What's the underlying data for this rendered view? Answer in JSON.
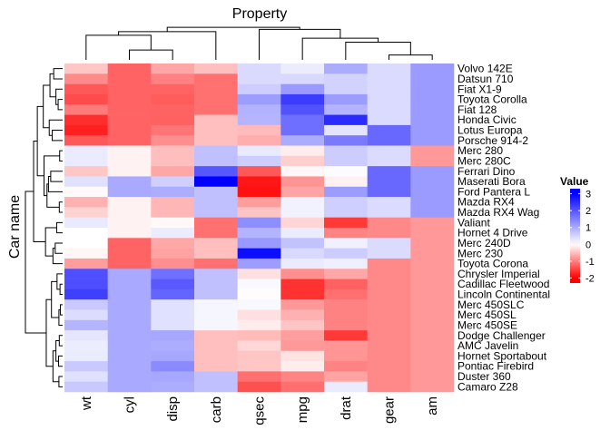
{
  "chart_data": {
    "type": "heatmap",
    "title": "Property",
    "ylabel": "Car name",
    "legend": {
      "title": "Value",
      "ticks": [
        3,
        2,
        1,
        0,
        -1,
        -2
      ],
      "range": [
        -2.3,
        3.3
      ],
      "low_color": "#ff0000",
      "mid_color": "#ffffff",
      "high_color": "#0000ff",
      "placement": "right"
    },
    "columns": [
      "wt",
      "cyl",
      "disp",
      "carb",
      "qsec",
      "mpg",
      "drat",
      "gear",
      "am"
    ],
    "rows": [
      "Volvo 142E",
      "Datsun 710",
      "Fiat X1-9",
      "Toyota Corolla",
      "Fiat 128",
      "Honda Civic",
      "Lotus Europa",
      "Porsche 914-2",
      "Merc 280",
      "Merc 280C",
      "Ferrari Dino",
      "Maserati Bora",
      "Ford Pantera L",
      "Mazda RX4",
      "Mazda RX4 Wag",
      "Valiant",
      "Hornet 4 Drive",
      "Merc 240D",
      "Merc 230",
      "Toyota Corona",
      "Chrysler Imperial",
      "Cadillac Fleetwood",
      "Lincoln Continental",
      "Merc 450SLC",
      "Merc 450SL",
      "Merc 450SE",
      "Dodge Challenger",
      "AMC Javelin",
      "Hornet Sportabout",
      "Pontiac Firebird",
      "Duster 360",
      "Camaro Z28"
    ],
    "values": [
      [
        -0.45,
        -1.22,
        -0.69,
        -0.5,
        0.43,
        0.22,
        0.98,
        0.42,
        1.19
      ],
      [
        -0.92,
        -1.22,
        -0.99,
        -1.12,
        0.43,
        0.45,
        0.53,
        0.42,
        1.19
      ],
      [
        -1.31,
        -1.22,
        -1.22,
        -1.12,
        0.59,
        1.2,
        0.53,
        0.42,
        1.19
      ],
      [
        -1.41,
        -1.22,
        -1.28,
        -1.12,
        1.15,
        2.29,
        1.17,
        0.42,
        1.19
      ],
      [
        -1.04,
        -1.22,
        -1.23,
        -1.12,
        0.91,
        2.04,
        0.9,
        0.42,
        1.19
      ],
      [
        -1.64,
        -1.22,
        -1.25,
        -0.5,
        0.88,
        1.71,
        2.49,
        0.42,
        1.19
      ],
      [
        -1.74,
        -1.22,
        -1.09,
        -0.5,
        -0.53,
        1.71,
        0.32,
        1.78,
        1.19
      ],
      [
        -1.31,
        -1.22,
        -0.89,
        -0.5,
        -0.64,
        0.98,
        1.56,
        1.78,
        1.19
      ],
      [
        0.23,
        -0.1,
        -0.51,
        0.74,
        0.25,
        -0.15,
        0.6,
        0.42,
        -0.81
      ],
      [
        0.23,
        -0.1,
        -0.51,
        0.74,
        0.59,
        -0.38,
        0.6,
        0.42,
        -0.81
      ],
      [
        -0.45,
        -0.1,
        -0.69,
        1.98,
        -1.31,
        -0.06,
        0.04,
        1.78,
        1.19
      ],
      [
        0.36,
        1.01,
        0.57,
        3.21,
        -1.82,
        -0.84,
        -0.11,
        1.78,
        1.19
      ],
      [
        -0.05,
        1.01,
        0.97,
        0.74,
        -1.87,
        -0.71,
        1.17,
        1.78,
        1.19
      ],
      [
        -0.61,
        -0.1,
        -0.57,
        0.74,
        -0.78,
        0.15,
        0.57,
        0.42,
        1.19
      ],
      [
        -0.35,
        -0.1,
        -0.57,
        0.74,
        -0.46,
        0.15,
        0.57,
        0.42,
        1.19
      ],
      [
        0.25,
        -0.1,
        -0.05,
        -1.12,
        1.33,
        -0.33,
        -1.56,
        -0.93,
        -0.81
      ],
      [
        -0.0,
        -0.1,
        0.22,
        -1.12,
        0.89,
        0.22,
        -0.97,
        -0.93,
        -0.81
      ],
      [
        -0.0,
        -1.22,
        -0.68,
        -0.5,
        1.2,
        0.72,
        0.18,
        0.42,
        -0.81
      ],
      [
        -0.07,
        -1.22,
        -0.73,
        -0.5,
        2.83,
        0.45,
        0.6,
        0.42,
        -0.81
      ],
      [
        -0.77,
        -1.22,
        -0.89,
        -1.12,
        1.15,
        0.23,
        0.19,
        -0.93,
        -0.81
      ],
      [
        2.07,
        1.01,
        1.68,
        0.74,
        -0.24,
        -0.89,
        -0.69,
        -0.93,
        -0.81
      ],
      [
        2.08,
        1.01,
        1.95,
        0.74,
        0.07,
        -1.61,
        -1.25,
        -0.93,
        -0.81
      ],
      [
        2.26,
        1.01,
        1.82,
        0.74,
        -0.02,
        -1.61,
        -1.12,
        -0.93,
        -0.81
      ],
      [
        0.64,
        1.01,
        0.36,
        0.11,
        0.08,
        -0.81,
        -0.98,
        -0.93,
        -0.81
      ],
      [
        0.41,
        1.01,
        0.36,
        0.11,
        -0.25,
        -0.61,
        -0.98,
        -0.93,
        -0.81
      ],
      [
        0.87,
        1.01,
        0.36,
        0.11,
        -0.14,
        -0.46,
        -0.98,
        -0.93,
        -0.81
      ],
      [
        0.31,
        1.01,
        1.03,
        -0.5,
        -0.54,
        -0.76,
        -1.56,
        -0.93,
        -0.81
      ],
      [
        0.22,
        1.01,
        0.97,
        -0.5,
        -0.31,
        -0.81,
        -0.83,
        -0.93,
        -0.81
      ],
      [
        0.23,
        1.01,
        1.04,
        -0.5,
        -0.46,
        -0.23,
        -0.83,
        -0.93,
        -0.81
      ],
      [
        0.64,
        1.01,
        1.37,
        -0.5,
        -0.45,
        -0.15,
        -0.97,
        -0.93,
        -0.81
      ],
      [
        0.36,
        1.01,
        1.04,
        0.74,
        -1.12,
        -0.96,
        -0.72,
        -0.93,
        -0.81
      ],
      [
        0.64,
        1.01,
        0.97,
        0.74,
        -1.37,
        -1.13,
        0.24,
        -0.93,
        -0.81
      ]
    ]
  }
}
